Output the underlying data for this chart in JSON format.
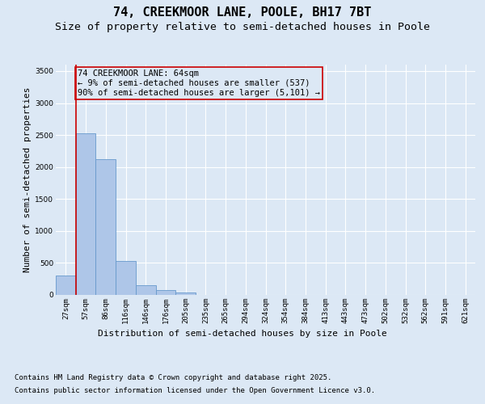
{
  "title_line1": "74, CREEKMOOR LANE, POOLE, BH17 7BT",
  "title_line2": "Size of property relative to semi-detached houses in Poole",
  "xlabel": "Distribution of semi-detached houses by size in Poole",
  "ylabel": "Number of semi-detached properties",
  "categories": [
    "27sqm",
    "57sqm",
    "86sqm",
    "116sqm",
    "146sqm",
    "176sqm",
    "205sqm",
    "235sqm",
    "265sqm",
    "294sqm",
    "324sqm",
    "354sqm",
    "384sqm",
    "413sqm",
    "443sqm",
    "473sqm",
    "502sqm",
    "532sqm",
    "562sqm",
    "591sqm",
    "621sqm"
  ],
  "values": [
    305,
    2530,
    2120,
    530,
    150,
    70,
    40,
    0,
    0,
    0,
    0,
    0,
    0,
    0,
    0,
    0,
    0,
    0,
    0,
    0,
    0
  ],
  "bar_color": "#aec6e8",
  "bar_edge_color": "#6699cc",
  "vline_x": 1,
  "vline_color": "#cc0000",
  "annotation_text_line1": "74 CREEKMOOR LANE: 64sqm",
  "annotation_text_line2": "← 9% of semi-detached houses are smaller (537)",
  "annotation_text_line3": "90% of semi-detached houses are larger (5,101) →",
  "annotation_box_color": "#cc0000",
  "ylim": [
    0,
    3600
  ],
  "yticks": [
    0,
    500,
    1000,
    1500,
    2000,
    2500,
    3000,
    3500
  ],
  "background_color": "#dce8f5",
  "plot_bg_color": "#dce8f5",
  "grid_color": "#ffffff",
  "footnote_line1": "Contains HM Land Registry data © Crown copyright and database right 2025.",
  "footnote_line2": "Contains public sector information licensed under the Open Government Licence v3.0.",
  "title_fontsize": 11,
  "subtitle_fontsize": 9.5,
  "axis_label_fontsize": 8,
  "tick_fontsize": 6.5,
  "annotation_fontsize": 7.5,
  "footnote_fontsize": 6.5
}
